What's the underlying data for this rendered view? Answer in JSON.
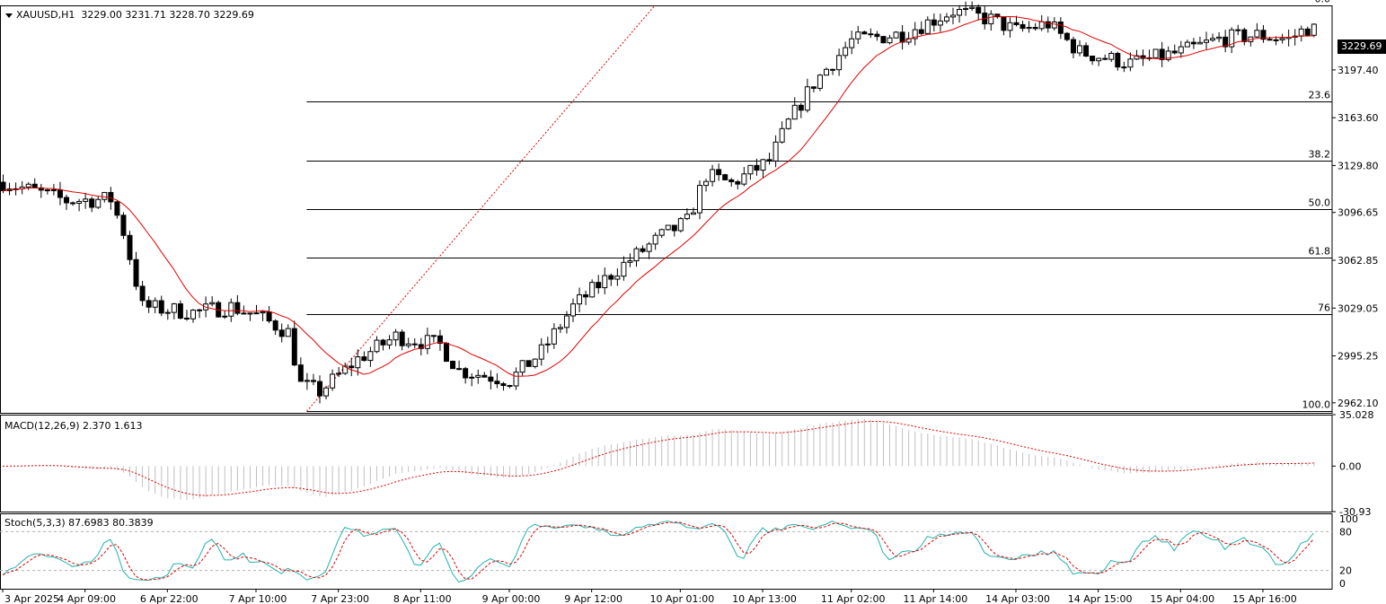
{
  "header": {
    "symbol": "XAUUSD,H1",
    "ohlc": "3229.00 3231.71 3228.70 3229.69"
  },
  "current_price": "3229.69",
  "colors": {
    "background": "#ffffff",
    "grid_line": "#000000",
    "ma_line": "#e00000",
    "trend_line": "#e00000",
    "macd_hist": "#c0c0c0",
    "signal_line": "#e00000",
    "stoch_main": "#20b2aa",
    "stoch_signal": "#e00000",
    "level_line": "#b0b0b0"
  },
  "chart_data": [
    {
      "type": "candlestick",
      "title": "XAUUSD,H1",
      "x_ticks": [
        "3 Apr 2025",
        "4 Apr 09:00",
        "6 Apr 22:00",
        "7 Apr 10:00",
        "7 Apr 23:00",
        "8 Apr 11:00",
        "9 Apr 00:00",
        "9 Apr 12:00",
        "10 Apr 01:00",
        "10 Apr 13:00",
        "11 Apr 02:00",
        "11 Apr 14:00",
        "14 Apr 03:00",
        "14 Apr 15:00",
        "15 Apr 04:00",
        "15 Apr 16:00"
      ],
      "y_ticks": [
        "3197.40",
        "3163.60",
        "3129.80",
        "3096.65",
        "3062.85",
        "3029.05",
        "2995.25",
        "2962.10"
      ],
      "ylim": [
        2955,
        3243
      ],
      "fib_levels": [
        {
          "label": "0.0",
          "price": 3243
        },
        {
          "label": "23.6",
          "price": 3175
        },
        {
          "label": "38.2",
          "price": 3133
        },
        {
          "label": "50.0",
          "price": 3099
        },
        {
          "label": "61.8",
          "price": 3065
        },
        {
          "label": "76",
          "price": 3025
        },
        {
          "label": "100.0",
          "price": 2956
        }
      ],
      "trend_line": {
        "from_bar": 48,
        "from_price": 2956,
        "to_bar": 103,
        "to_price": 3243
      },
      "moving_average": "red line",
      "candle_count": 208,
      "waypoints": [
        [
          0,
          3118
        ],
        [
          10,
          3105
        ],
        [
          17,
          3106
        ],
        [
          19,
          3083
        ],
        [
          22,
          3030
        ],
        [
          30,
          3026
        ],
        [
          36,
          3030
        ],
        [
          40,
          3024
        ],
        [
          45,
          3012
        ],
        [
          47,
          2975
        ],
        [
          50,
          2970
        ],
        [
          56,
          2993
        ],
        [
          62,
          3009
        ],
        [
          69,
          3003
        ],
        [
          72,
          2985
        ],
        [
          80,
          2978
        ],
        [
          85,
          2998
        ],
        [
          90,
          3030
        ],
        [
          96,
          3053
        ],
        [
          104,
          3080
        ],
        [
          108,
          3090
        ],
        [
          111,
          3123
        ],
        [
          115,
          3117
        ],
        [
          121,
          3133
        ],
        [
          124,
          3160
        ],
        [
          128,
          3188
        ],
        [
          134,
          3218
        ],
        [
          142,
          3223
        ],
        [
          150,
          3239
        ],
        [
          156,
          3233
        ],
        [
          160,
          3225
        ],
        [
          165,
          3230
        ],
        [
          170,
          3210
        ],
        [
          178,
          3202
        ],
        [
          186,
          3210
        ],
        [
          192,
          3219
        ],
        [
          198,
          3222
        ],
        [
          203,
          3219
        ],
        [
          207,
          3230
        ]
      ]
    },
    {
      "type": "bar",
      "title": "MACD(12,26,9) 2.370 1.613",
      "y_ticks": [
        "35.028",
        "0.00",
        "-30.93"
      ],
      "ylim": [
        -30.93,
        35.028
      ],
      "series": [
        {
          "name": "MACD",
          "kind": "histogram"
        },
        {
          "name": "Signal",
          "kind": "dotted line"
        }
      ]
    },
    {
      "type": "line",
      "title": "Stoch(5,3,3) 87.6983 80.3839",
      "y_ticks": [
        "100",
        "80",
        "20",
        "0"
      ],
      "ylim": [
        0,
        100
      ],
      "levels": [
        80,
        20
      ],
      "series": [
        {
          "name": "Main"
        },
        {
          "name": "Signal"
        }
      ]
    }
  ]
}
